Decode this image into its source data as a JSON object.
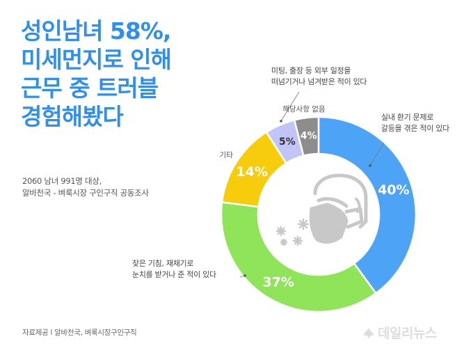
{
  "title_lines": [
    "성인남녀 58%,",
    "미세먼지로 인해",
    "근무 중 트러블",
    "경험해봤다"
  ],
  "subtitle_lines": [
    "2060 남녀 991명 대상,",
    "알바천국 - 벼룩시장 구인구직  공동조사"
  ],
  "footer": "자료제공 l 알바천국, 벼룩시장구인구직",
  "watermark": "데일리뉴스",
  "colors": {
    "title": "#2f8ff0",
    "segments": [
      "#4da3f5",
      "#8fe45a",
      "#f7cc0d",
      "#c2c3f7",
      "#8d8d8d"
    ]
  },
  "chart_data": {
    "type": "donut",
    "categories": [
      "실내 환기 문제로 갈등을 겪은 적이 있다",
      "잦은 기침, 재채기로 눈치를 받거나 준 적이 있다",
      "기타",
      "미팅, 출장 등 외부 일정을 떠넘기거나 넘겨받은 적이 있다",
      "해당사항 없음"
    ],
    "values": [
      40,
      37,
      14,
      5,
      4
    ],
    "value_labels": [
      "40%",
      "37%",
      "14%",
      "5%",
      "4%"
    ],
    "callouts": [
      [
        "실내 환기 문제로",
        "갈등을 겪은 적이 있다"
      ],
      [
        "잦은 기침, 재채기로",
        "눈치를 받거나 준 적이 있다"
      ],
      [
        "기타"
      ],
      [
        "미팅, 출장 등 외부 일정을",
        "떠넘기거나 넘겨받은 적이 있다"
      ],
      [
        "해당사항 없음"
      ]
    ],
    "center_icon": "masked-face-dust-icon"
  }
}
